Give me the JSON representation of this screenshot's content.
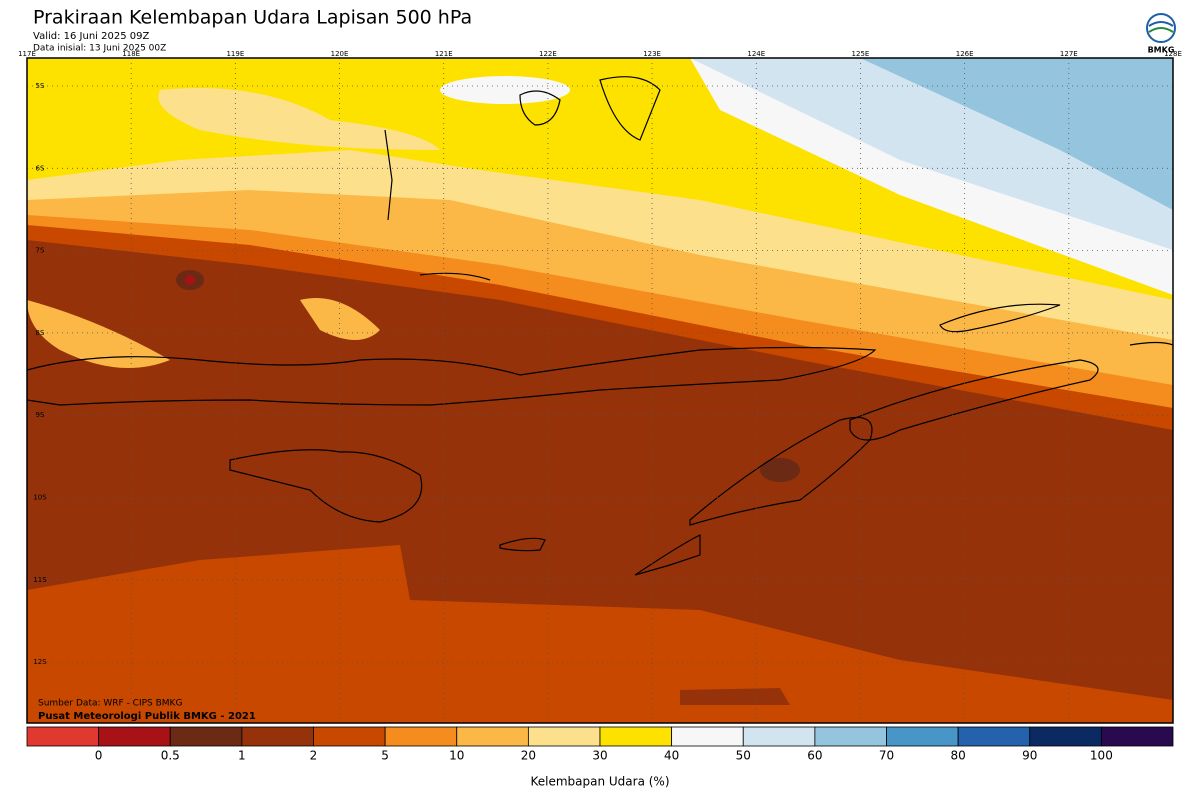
{
  "header": {
    "title": "Prakiraan Kelembapan Udara Lapisan 500 hPa",
    "valid": "Valid: 16 Juni 2025 09Z",
    "initial": "Data inisial: 13 Juni 2025 00Z",
    "logo": "BMKG"
  },
  "map": {
    "lon_labels": [
      "117E",
      "118E",
      "119E",
      "120E",
      "121E",
      "122E",
      "123E",
      "124E",
      "125E",
      "126E",
      "127E",
      "128E"
    ],
    "lat_labels": [
      "5S",
      "6S",
      "7S",
      "8S",
      "9S",
      "10S",
      "11S",
      "12S"
    ],
    "source": "Sumber Data: WRF - CIPS BMKG",
    "credit": "Pusat Meteorologi Publik BMKG - 2021"
  },
  "legend": {
    "title": "Kelembapan Udara (%)",
    "colors": [
      "#e03a30",
      "#a81116",
      "#6a2a14",
      "#96320a",
      "#c84800",
      "#f58c1e",
      "#fbb846",
      "#fde08c",
      "#fde200",
      "#f7f7f7",
      "#d2e4f0",
      "#94c4de",
      "#4896c8",
      "#2462ae",
      "#0c2a62",
      "#2a0a4e"
    ],
    "ticks": [
      0,
      0.5,
      1,
      2,
      5,
      10,
      20,
      30,
      40,
      50,
      60,
      70,
      80,
      90,
      100
    ]
  }
}
